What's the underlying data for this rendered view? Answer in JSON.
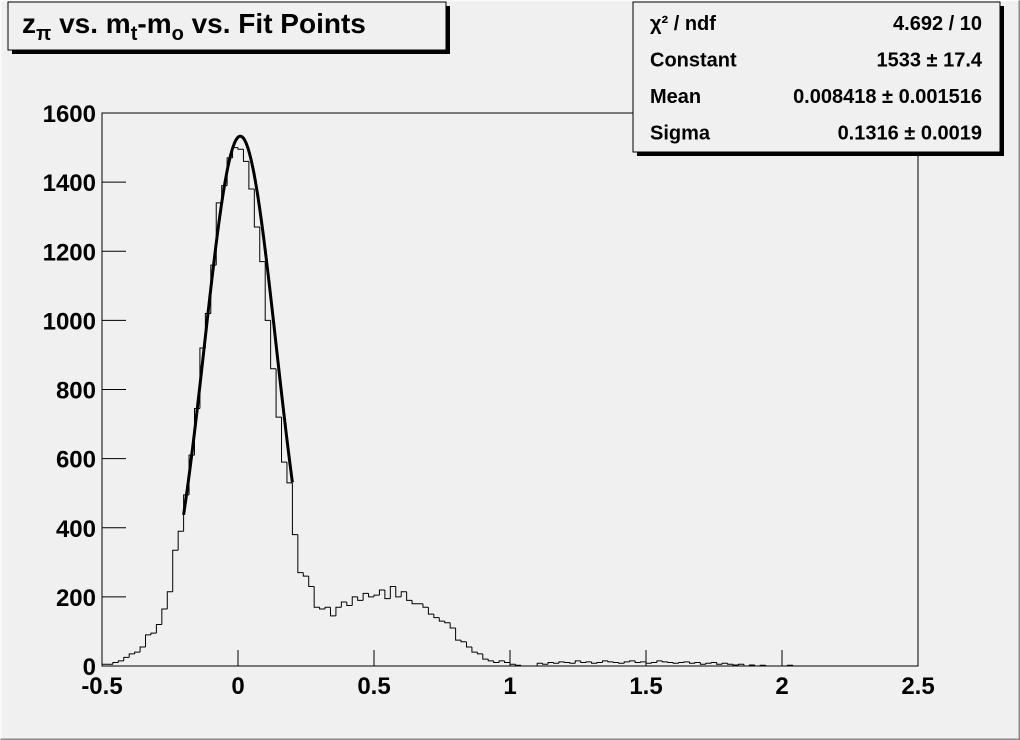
{
  "chart_data": {
    "type": "histogram",
    "title": [
      {
        "text": "z"
      },
      {
        "text": "π",
        "sub": true
      },
      {
        "text": " vs. m"
      },
      {
        "text": "t",
        "sub": true
      },
      {
        "text": "-m"
      },
      {
        "text": "o",
        "sub": true
      },
      {
        "text": " vs. Fit Points"
      }
    ],
    "bins": [
      -0.5,
      -0.48,
      -0.46,
      -0.44,
      -0.42,
      -0.4,
      -0.38,
      -0.36,
      -0.34,
      -0.32,
      -0.3,
      -0.28,
      -0.26,
      -0.24,
      -0.22,
      -0.2,
      -0.18,
      -0.16,
      -0.14,
      -0.12,
      -0.1,
      -0.08,
      -0.06,
      -0.04,
      -0.02,
      0,
      0.02,
      0.04,
      0.06,
      0.08,
      0.1,
      0.12,
      0.14,
      0.16,
      0.18,
      0.2,
      0.22,
      0.24,
      0.26,
      0.28,
      0.3,
      0.32,
      0.34,
      0.36,
      0.38,
      0.4,
      0.42,
      0.44,
      0.46,
      0.48,
      0.5,
      0.52,
      0.54,
      0.56,
      0.58,
      0.6,
      0.62,
      0.64,
      0.66,
      0.68,
      0.7,
      0.72,
      0.74,
      0.76,
      0.78,
      0.8,
      0.82,
      0.84,
      0.86,
      0.88,
      0.9,
      0.92,
      0.94,
      0.96,
      0.98,
      1,
      1.02,
      1.04,
      1.06,
      1.08,
      1.1,
      1.12,
      1.14,
      1.16,
      1.18,
      1.2,
      1.22,
      1.24,
      1.26,
      1.28,
      1.3,
      1.32,
      1.34,
      1.36,
      1.38,
      1.4,
      1.42,
      1.44,
      1.46,
      1.48,
      1.5,
      1.52,
      1.54,
      1.56,
      1.58,
      1.6,
      1.62,
      1.64,
      1.66,
      1.68,
      1.7,
      1.72,
      1.74,
      1.76,
      1.78,
      1.8,
      1.82,
      1.84,
      1.86,
      1.88,
      1.9,
      1.92,
      1.94,
      1.96,
      1.98,
      2,
      2.02,
      2.04,
      2.06,
      2.08,
      2.1,
      2.12,
      2.14,
      2.16,
      2.18,
      2.2,
      2.22,
      2.24,
      2.26,
      2.28,
      2.3,
      2.32,
      2.34,
      2.36,
      2.38,
      2.4,
      2.42,
      2.44,
      2.46,
      2.48,
      2.5
    ],
    "values": [
      5,
      5,
      10,
      15,
      25,
      35,
      40,
      55,
      90,
      95,
      120,
      165,
      215,
      335,
      390,
      495,
      610,
      745,
      920,
      1020,
      1160,
      1340,
      1390,
      1470,
      1500,
      1495,
      1460,
      1380,
      1270,
      1170,
      1000,
      860,
      720,
      590,
      530,
      380,
      270,
      260,
      230,
      170,
      165,
      170,
      145,
      170,
      185,
      175,
      200,
      190,
      210,
      200,
      205,
      220,
      195,
      230,
      200,
      215,
      190,
      180,
      180,
      170,
      150,
      140,
      130,
      125,
      110,
      75,
      70,
      55,
      40,
      35,
      20,
      15,
      10,
      15,
      10,
      5,
      2,
      0,
      0,
      0,
      8,
      5,
      10,
      8,
      12,
      10,
      8,
      15,
      10,
      12,
      8,
      10,
      15,
      12,
      10,
      8,
      12,
      15,
      10,
      12,
      8,
      10,
      15,
      12,
      10,
      8,
      10,
      12,
      8,
      10,
      5,
      8,
      10,
      5,
      8,
      5,
      3,
      5,
      0,
      3,
      0,
      2,
      0,
      0,
      0,
      0,
      2,
      0,
      0,
      0,
      0,
      0,
      0,
      0,
      0,
      0,
      0,
      0,
      0,
      0,
      0,
      0,
      0,
      0,
      0,
      0,
      0,
      0,
      0,
      0
    ],
    "color": "#000000",
    "xlim": [
      -0.5,
      2.5
    ],
    "xticks": [
      -0.5,
      0,
      0.5,
      1,
      1.5,
      2,
      2.5
    ],
    "ylim": [
      0,
      1600
    ],
    "yticks": [
      0,
      200,
      400,
      600,
      800,
      1000,
      1200,
      1400,
      1600
    ],
    "fit": {
      "function": "gaus",
      "range": [
        -0.2,
        0.2
      ],
      "constant": 1533,
      "mean": 0.008418,
      "sigma": 0.1316,
      "color": "#000000"
    },
    "stats": [
      {
        "label": "χ² / ndf",
        "value_label": "4.692 / 10"
      },
      {
        "label": "Constant",
        "value_label": "1533 ± 17.4"
      },
      {
        "label": "Mean",
        "value_label": "0.008418 ± 0.001516"
      },
      {
        "label": "Sigma",
        "value_label": "0.1316 ± 0.0019"
      }
    ]
  }
}
